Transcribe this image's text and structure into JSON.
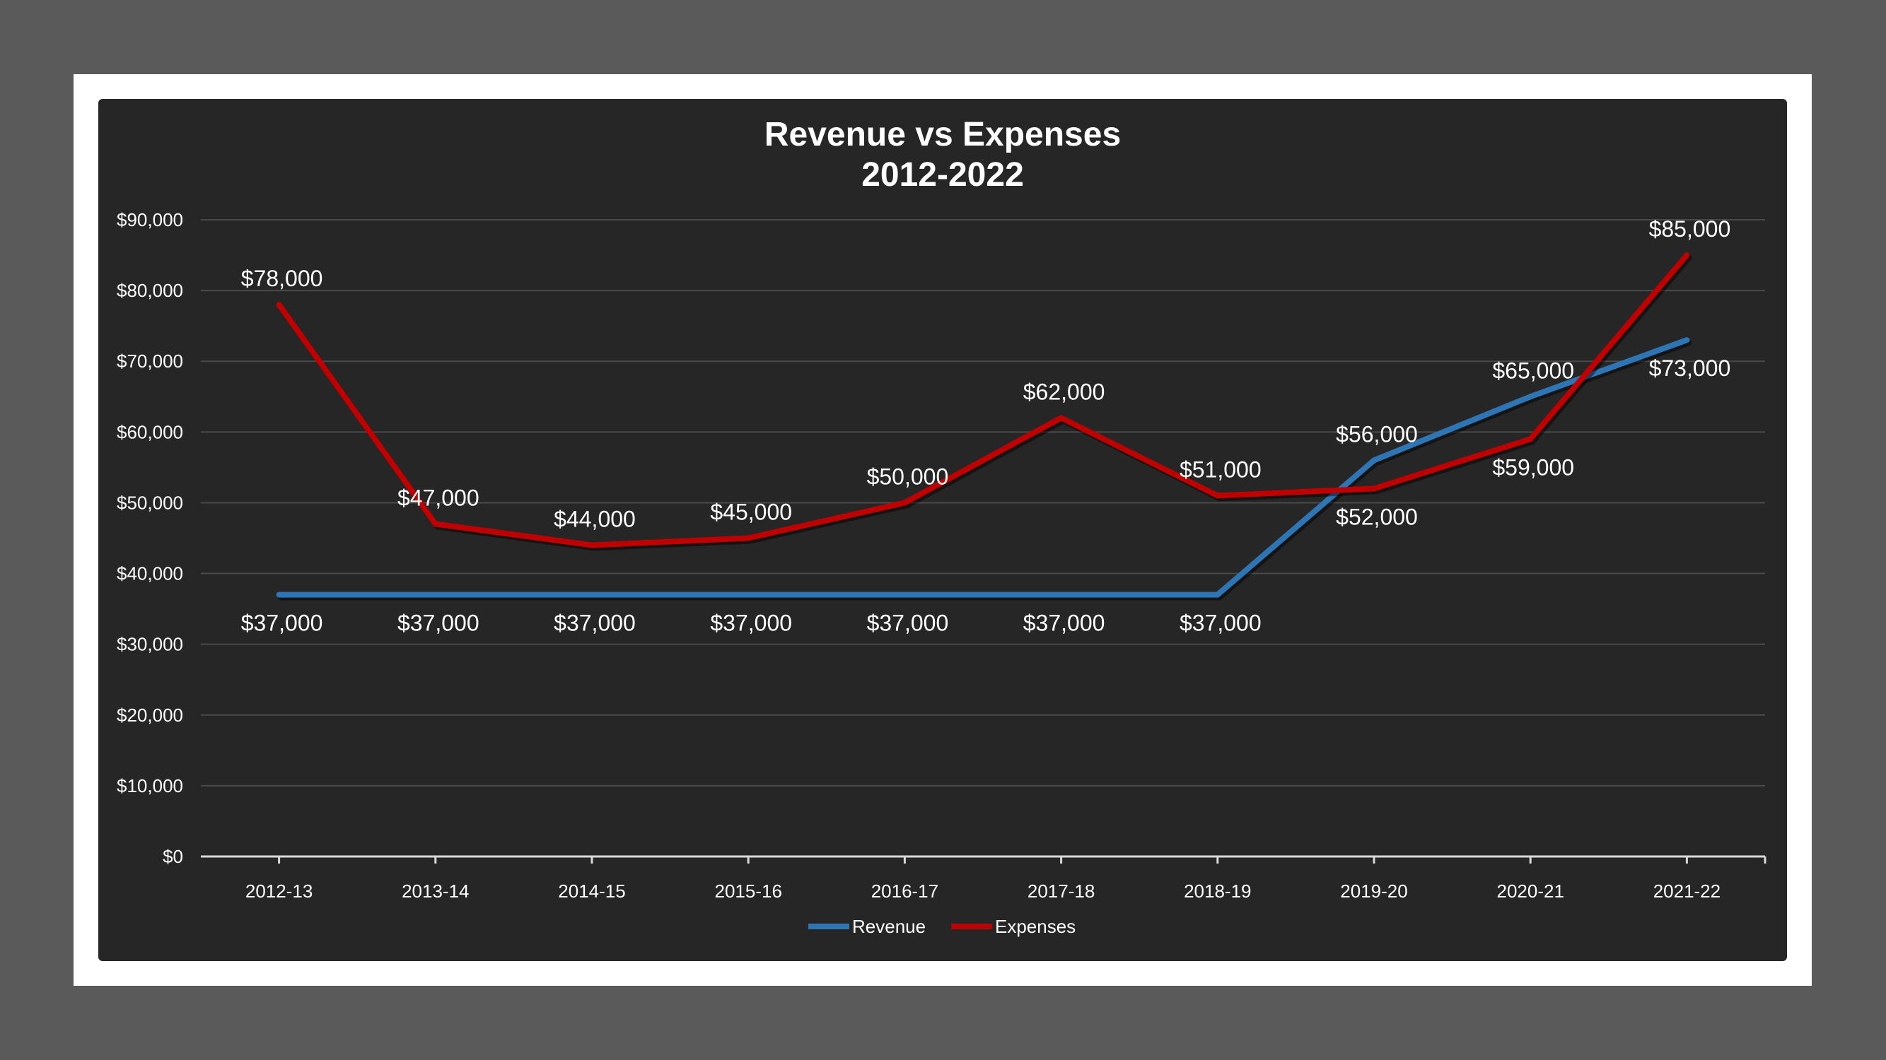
{
  "chart_data": {
    "type": "line",
    "title": [
      "Revenue vs Expenses",
      "2012-2022"
    ],
    "xlabel": "",
    "ylabel": "",
    "categories": [
      "2012-13",
      "2013-14",
      "2014-15",
      "2015-16",
      "2016-17",
      "2017-18",
      "2018-19",
      "2019-20",
      "2020-21",
      "2021-22"
    ],
    "ylim": [
      0,
      90000
    ],
    "y_ticks": [
      0,
      10000,
      20000,
      30000,
      40000,
      50000,
      60000,
      70000,
      80000,
      90000
    ],
    "y_tick_labels": [
      "$0",
      "$10,000",
      "$20,000",
      "$30,000",
      "$40,000",
      "$50,000",
      "$60,000",
      "$70,000",
      "$80,000",
      "$90,000"
    ],
    "grid": true,
    "legend_position": "bottom",
    "series": [
      {
        "name": "Revenue",
        "color": "#2e75b6",
        "values": [
          37000,
          37000,
          37000,
          37000,
          37000,
          37000,
          37000,
          56000,
          65000,
          73000
        ],
        "labels": [
          "$37,000",
          "$37,000",
          "$37,000",
          "$37,000",
          "$37,000",
          "$37,000",
          "$37,000",
          "$56,000",
          "$65,000",
          "$73,000"
        ],
        "label_side": [
          "below",
          "below",
          "below",
          "below",
          "below",
          "below",
          "below",
          "above",
          "above",
          "below"
        ]
      },
      {
        "name": "Expenses",
        "color": "#c00000",
        "values": [
          78000,
          47000,
          44000,
          45000,
          50000,
          62000,
          51000,
          52000,
          59000,
          85000
        ],
        "labels": [
          "$78,000",
          "$47,000",
          "$44,000",
          "$45,000",
          "$50,000",
          "$62,000",
          "$51,000",
          "$52,000",
          "$59,000",
          "$85,000"
        ],
        "label_side": [
          "above",
          "above",
          "above",
          "above",
          "above",
          "above",
          "above",
          "below",
          "below",
          "above"
        ]
      }
    ]
  }
}
